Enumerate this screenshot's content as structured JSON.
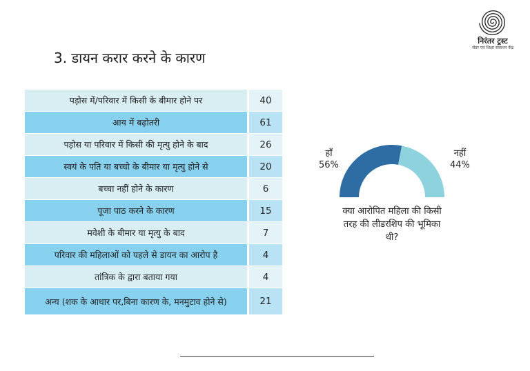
{
  "logo": {
    "name": "निरंतर ट्रस्ट",
    "subtitle": "जेंडर एवं शिक्षा संसाधन केंद्र"
  },
  "slide_title": "3. डायन करार करने के कारण",
  "colors": {
    "dark_slice": "#2e6da4",
    "light_slice": "#8dd2dc",
    "row_light": "#d8eef3",
    "row_dark": "#88d1ee"
  },
  "chart_data": [
    {
      "type": "table",
      "rows": [
        {
          "label": "पड़ोस में/परिवार में किसी के बीमार होने पर",
          "value": 40
        },
        {
          "label": "आय में बढ़ोतरी",
          "value": 61
        },
        {
          "label": "पड़ोस या परिवार में किसी की मृत्यु होने के बाद",
          "value": 26
        },
        {
          "label": "स्वयं के पति या बच्चो के बीमार या मृत्यु होने से",
          "value": 20
        },
        {
          "label": "बच्चा नहीं होने के कारण",
          "value": 6
        },
        {
          "label": "पूजा पाठ करने के कारण",
          "value": 15
        },
        {
          "label": "मवेशी के बीमार या मृत्यु के बाद",
          "value": 7
        },
        {
          "label": "परिवार की महिलाओं को पहले से डायन का आरोप है",
          "value": 4
        },
        {
          "label": "तांत्रिक के द्वारा बताया गया",
          "value": 4
        },
        {
          "label": "अन्य (शक के आधार पर,बिना कारण के, मनमुटाव होने से)",
          "value": 21
        }
      ]
    },
    {
      "type": "pie",
      "style": "half-donut",
      "slices": [
        {
          "name": "हाँ",
          "value": 56,
          "label": "56%"
        },
        {
          "name": "नहीं",
          "value": 44,
          "label": "44%"
        }
      ],
      "caption": "क्या आरोपित महिला की किसी तरह की लीडरशिप की भूमिका थी?"
    }
  ]
}
